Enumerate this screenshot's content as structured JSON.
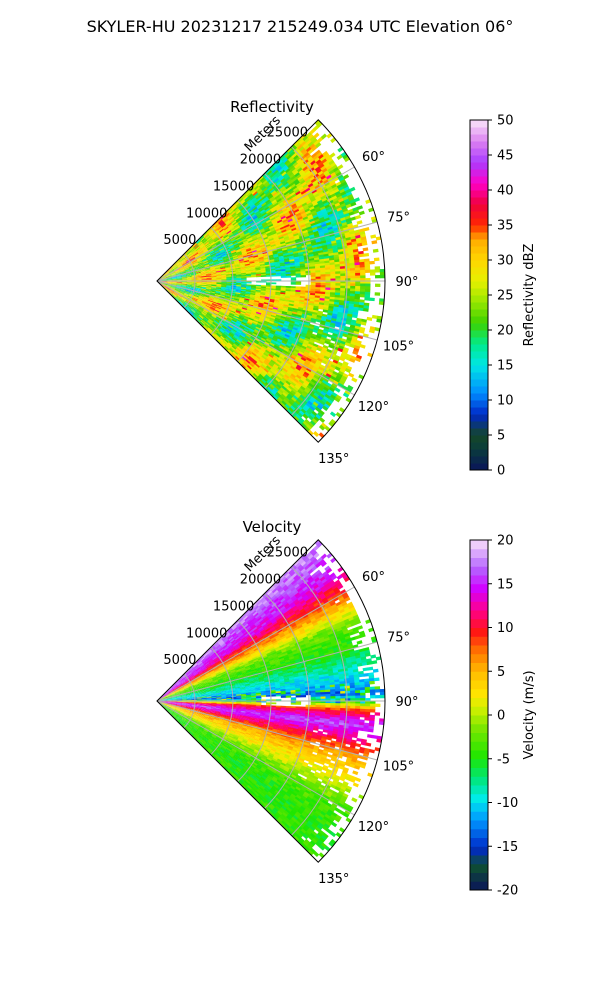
{
  "figure": {
    "suptitle": "SKYLER-HU  20231217  215249.034 UTC Elevation 06°"
  },
  "chart_data": [
    {
      "type": "heatmap",
      "title": "Reflectivity",
      "projection": "polar-sector",
      "azimuth_range_deg": [
        45,
        135
      ],
      "azimuth_ticks_deg": [
        60,
        75,
        90,
        105,
        120,
        135
      ],
      "azimuth_tick_labels": [
        "60°",
        "75°",
        "90°",
        "105°",
        "120°",
        "135°"
      ],
      "range_max_m": 30000,
      "range_ticks_m": [
        5000,
        10000,
        15000,
        20000,
        25000
      ],
      "range_tick_labels": [
        "5000",
        "10000",
        "15000",
        "20000",
        "25000"
      ],
      "range_label": "Meters",
      "colorbar": {
        "label": "Reflectivity dBZ",
        "vmin": 0,
        "vmax": 50,
        "ticks": [
          0,
          5,
          10,
          15,
          20,
          25,
          30,
          35,
          40,
          45,
          50
        ],
        "tick_labels": [
          "0",
          "5",
          "10",
          "15",
          "20",
          "25",
          "30",
          "35",
          "40",
          "45",
          "50"
        ],
        "colormap": "radar reflectivity"
      },
      "field_description": {
        "typical_dbz_range": [
          18,
          32
        ],
        "near_radar_max_dbz": 36,
        "gap_azimuth_deg": [
          88,
          92
        ],
        "gap_range_m": [
          12000,
          20000
        ]
      },
      "grid": true
    },
    {
      "type": "heatmap",
      "title": "Velocity",
      "projection": "polar-sector",
      "azimuth_range_deg": [
        45,
        135
      ],
      "azimuth_ticks_deg": [
        60,
        75,
        90,
        105,
        120,
        135
      ],
      "azimuth_tick_labels": [
        "60°",
        "75°",
        "90°",
        "105°",
        "120°",
        "135°"
      ],
      "range_max_m": 30000,
      "range_ticks_m": [
        5000,
        10000,
        15000,
        20000,
        25000
      ],
      "range_tick_labels": [
        "5000",
        "10000",
        "15000",
        "20000",
        "25000"
      ],
      "range_label": "Meters",
      "colorbar": {
        "label": "Velocity (m/s)",
        "vmin": -20,
        "vmax": 20,
        "ticks": [
          -20,
          -15,
          -10,
          -5,
          0,
          5,
          10,
          15,
          20
        ],
        "tick_labels": [
          "-20",
          "-15",
          "-10",
          "-5",
          "0",
          "5",
          "10",
          "15",
          "20"
        ],
        "colormap": "radar velocity"
      },
      "field_description": {
        "velocity_by_azimuth_deg": [
          [
            45,
            18
          ],
          [
            55,
            14
          ],
          [
            62,
            6
          ],
          [
            68,
            -2
          ],
          [
            75,
            -5
          ],
          [
            80,
            -8
          ],
          [
            85,
            -11
          ],
          [
            88,
            -14
          ],
          [
            90,
            -5
          ],
          [
            93,
            10
          ],
          [
            97,
            16
          ],
          [
            101,
            12
          ],
          [
            106,
            6
          ],
          [
            113,
            2
          ],
          [
            120,
            -3
          ],
          [
            128,
            -5
          ],
          [
            135,
            -4
          ]
        ],
        "gap_azimuth_deg": [
          88,
          92
        ],
        "gap_range_m": [
          14000,
          20000
        ]
      },
      "grid": true
    }
  ]
}
